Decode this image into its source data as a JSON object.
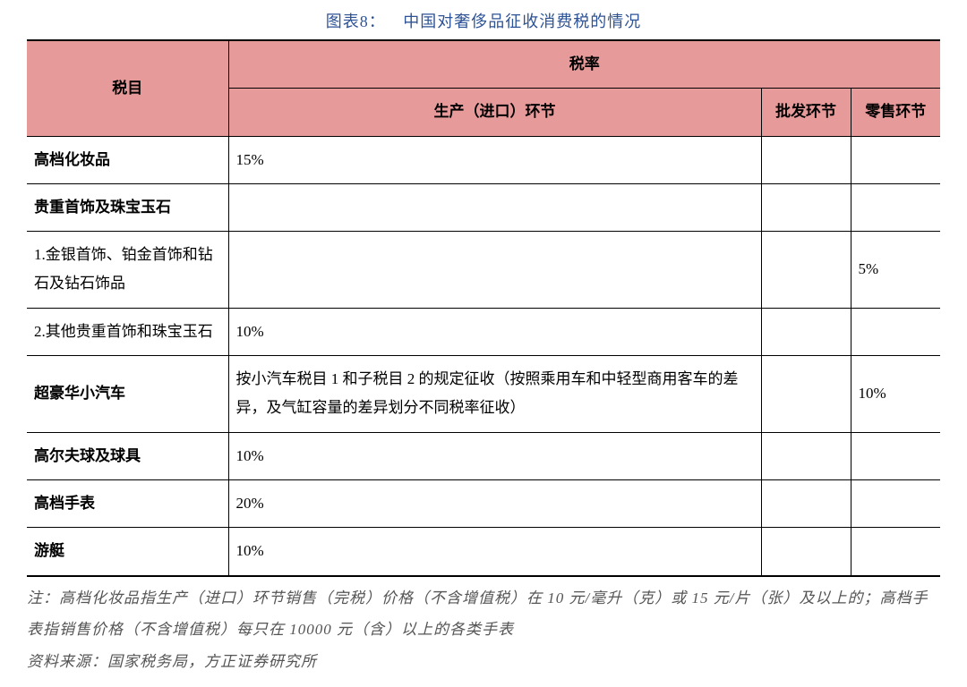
{
  "title": {
    "prefix": "图表8：",
    "text": "中国对奢侈品征收消费税的情况"
  },
  "headers": {
    "tax_item": "税目",
    "tax_rate_group": "税率",
    "production_import": "生产（进口）环节",
    "wholesale": "批发环节",
    "retail": "零售环节"
  },
  "rows": [
    {
      "item": "高档化妆品",
      "bold": true,
      "prod": "15%",
      "wholesale": "",
      "retail": ""
    },
    {
      "item": "贵重首饰及珠宝玉石",
      "bold": true,
      "prod": "",
      "wholesale": "",
      "retail": ""
    },
    {
      "item": "1.金银首饰、铂金首饰和钻石及钻石饰品",
      "bold": false,
      "prod": "",
      "wholesale": "",
      "retail": "5%"
    },
    {
      "item": "2.其他贵重首饰和珠宝玉石",
      "bold": false,
      "prod": "10%",
      "wholesale": "",
      "retail": ""
    },
    {
      "item": "超豪华小汽车",
      "bold": true,
      "prod": "按小汽车税目 1 和子税目 2 的规定征收（按照乘用车和中轻型商用客车的差异，及气缸容量的差异划分不同税率征收）",
      "wholesale": "",
      "retail": "10%"
    },
    {
      "item": "高尔夫球及球具",
      "bold": true,
      "prod": "10%",
      "wholesale": "",
      "retail": ""
    },
    {
      "item": "高档手表",
      "bold": true,
      "prod": "20%",
      "wholesale": "",
      "retail": ""
    },
    {
      "item": "游艇",
      "bold": true,
      "prod": "10%",
      "wholesale": "",
      "retail": ""
    }
  ],
  "footnotes": {
    "line1": "注：高档化妆品指生产（进口）环节销售（完税）价格（不含增值税）在 10 元/毫升（克）或 15 元/片（张）及以上的；高档手表指销售价格（不含增值税）每只在 10000 元（含）以上的各类手表",
    "line2": "资料来源：国家税务局，方正证券研究所"
  },
  "style": {
    "title_color": "#2e5395",
    "header_bg": "#e79a9a",
    "border_color": "#000000",
    "footnote_color": "#555555"
  }
}
